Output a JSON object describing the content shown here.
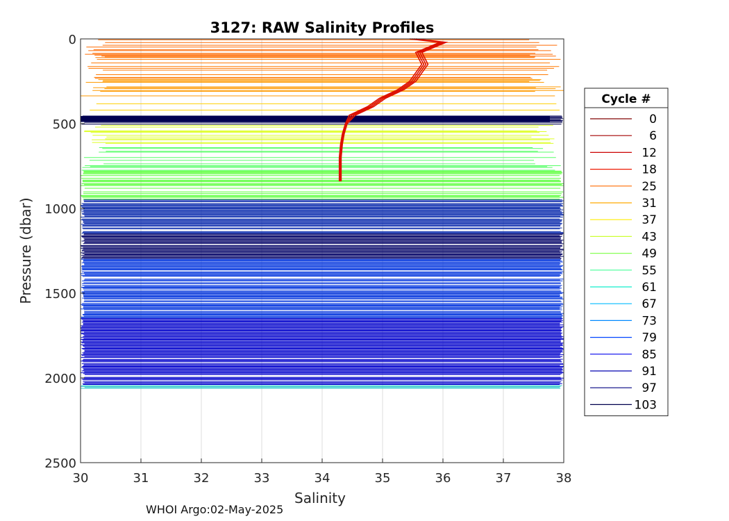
{
  "footer": "WHOI Argo:02-May-2025",
  "chart_data": {
    "type": "line",
    "title": "3127: RAW Salinity Profiles",
    "xlabel": "Salinity",
    "ylabel": "Pressure (dbar)",
    "xlim": [
      30,
      38
    ],
    "ylim": [
      0,
      2500
    ],
    "y_reversed": true,
    "grid": true,
    "xticks": [
      "30",
      "31",
      "32",
      "33",
      "34",
      "35",
      "36",
      "37",
      "38"
    ],
    "yticks": [
      "0",
      "500",
      "1000",
      "1500",
      "2000",
      "2500"
    ],
    "legend": {
      "title": "Cycle #",
      "placement": "outside-right",
      "entries": [
        {
          "label": "0",
          "color": "#800000"
        },
        {
          "label": "6",
          "color": "#a30000"
        },
        {
          "label": "12",
          "color": "#cc0000"
        },
        {
          "label": "18",
          "color": "#ee1800"
        },
        {
          "label": "25",
          "color": "#ff6a00"
        },
        {
          "label": "31",
          "color": "#ffaa00"
        },
        {
          "label": "37",
          "color": "#ffee00"
        },
        {
          "label": "43",
          "color": "#ccff33"
        },
        {
          "label": "49",
          "color": "#88ff55"
        },
        {
          "label": "55",
          "color": "#44ff99"
        },
        {
          "label": "61",
          "color": "#11eecc"
        },
        {
          "label": "67",
          "color": "#00bbff"
        },
        {
          "label": "73",
          "color": "#0088ff"
        },
        {
          "label": "79",
          "color": "#0044ff"
        },
        {
          "label": "85",
          "color": "#0000ee"
        },
        {
          "label": "91",
          "color": "#0000b0"
        },
        {
          "label": "97",
          "color": "#000080"
        },
        {
          "label": "103",
          "color": "#00004d"
        }
      ]
    },
    "profile_curve": {
      "color": "#dd1100",
      "points": [
        [
          35.5,
          0
        ],
        [
          36.0,
          20
        ],
        [
          35.6,
          80
        ],
        [
          35.7,
          150
        ],
        [
          35.5,
          250
        ],
        [
          35.3,
          300
        ],
        [
          35.0,
          350
        ],
        [
          34.8,
          400
        ],
        [
          34.5,
          450
        ],
        [
          34.4,
          500
        ],
        [
          34.35,
          560
        ],
        [
          34.32,
          620
        ],
        [
          34.3,
          700
        ],
        [
          34.3,
          800
        ],
        [
          34.3,
          840
        ]
      ]
    },
    "bands": [
      {
        "p0": 0,
        "p1": 110,
        "color": "#ff6a00",
        "density": 0.55
      },
      {
        "p0": 110,
        "p1": 240,
        "color": "#ff7800",
        "density": 0.35
      },
      {
        "p0": 240,
        "p1": 340,
        "color": "#ff9a00",
        "density": 0.55
      },
      {
        "p0": 340,
        "p1": 455,
        "color": "#ffd000",
        "density": 0.25
      },
      {
        "p0": 455,
        "p1": 510,
        "color": "#000055",
        "density": 0.9
      },
      {
        "p0": 510,
        "p1": 620,
        "color": "#ddff22",
        "density": 0.5
      },
      {
        "p0": 620,
        "p1": 780,
        "color": "#55ff66",
        "density": 0.5
      },
      {
        "p0": 780,
        "p1": 950,
        "color": "#55ff33",
        "density": 0.7
      },
      {
        "p0": 950,
        "p1": 1150,
        "color": "#0022aa",
        "density": 0.85
      },
      {
        "p0": 1150,
        "p1": 1300,
        "color": "#000066",
        "density": 0.9
      },
      {
        "p0": 1300,
        "p1": 1650,
        "color": "#0033dd",
        "density": 0.9
      },
      {
        "p0": 1650,
        "p1": 2040,
        "color": "#0000cc",
        "density": 0.9
      },
      {
        "p0": 2040,
        "p1": 2065,
        "color": "#33cccc",
        "density": 0.8
      }
    ]
  }
}
